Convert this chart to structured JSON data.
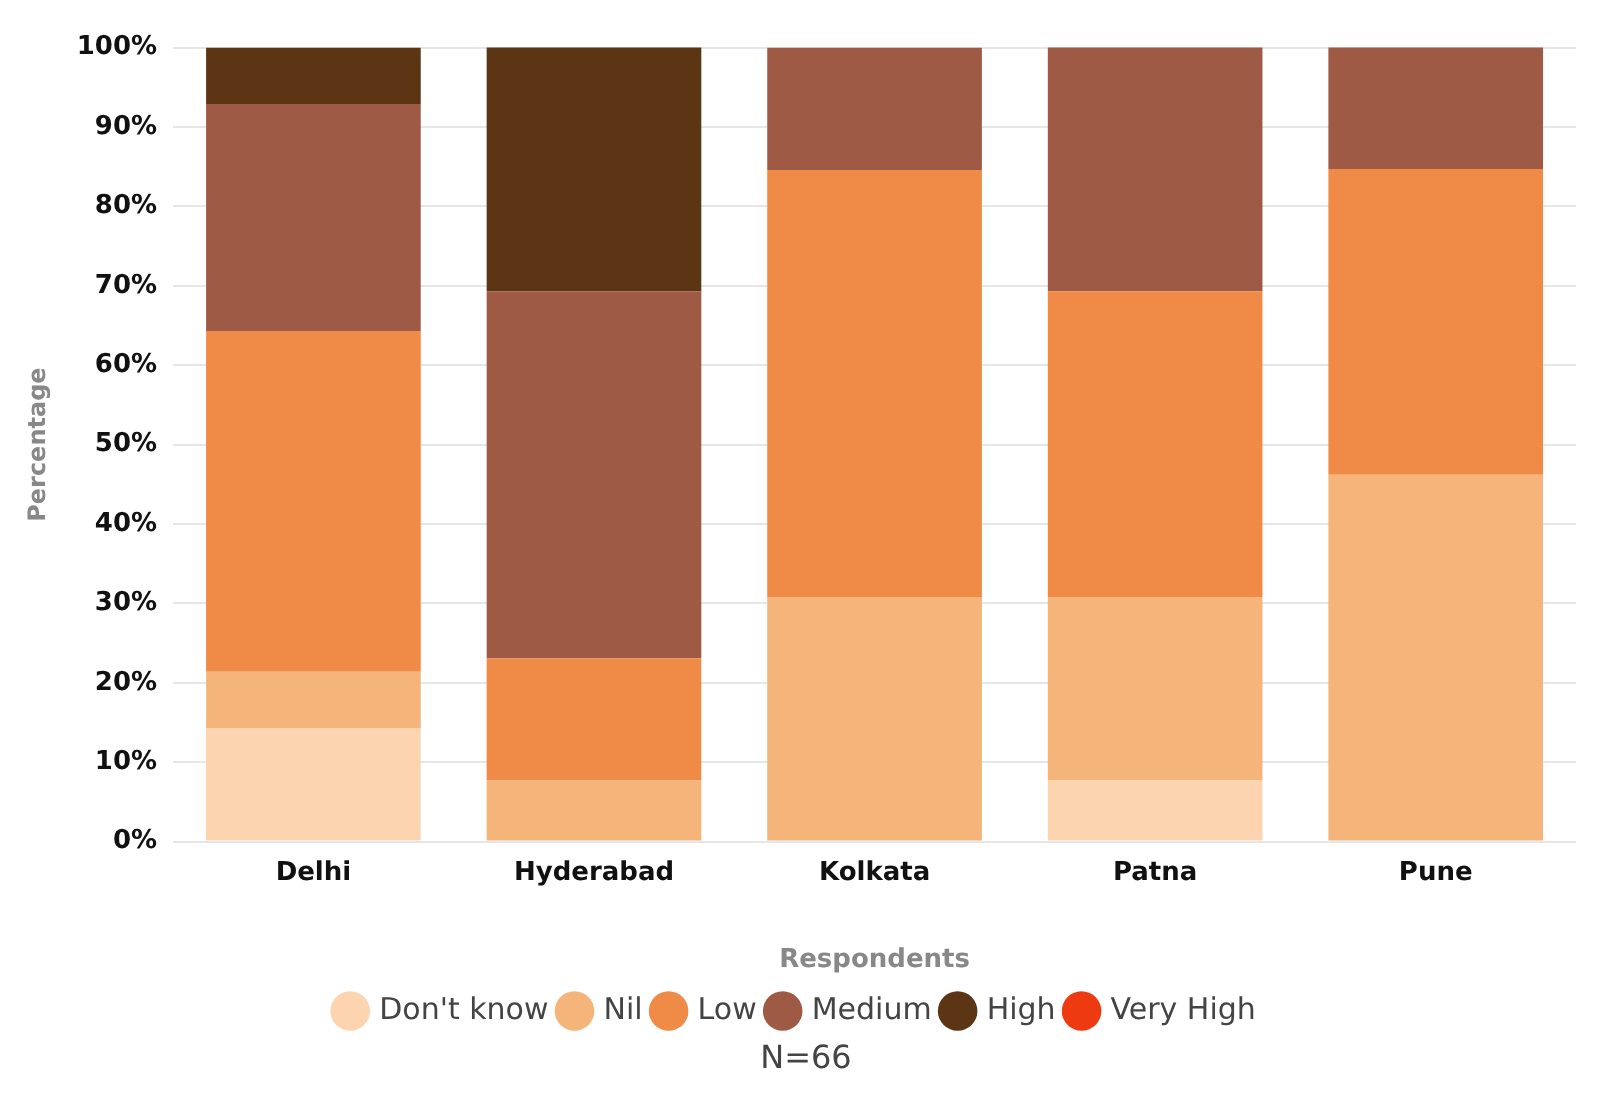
{
  "chart_data": {
    "type": "bar",
    "stacked": true,
    "xlabel": "Respondents",
    "ylabel": "Percentage",
    "categories": [
      "Delhi",
      "Hyderabad",
      "Kolkata",
      "Patna",
      "Pune"
    ],
    "series": [
      {
        "name": "Don't know",
        "color": "#fcd5b0",
        "values": [
          14.3,
          0,
          0,
          7.7,
          0
        ]
      },
      {
        "name": "Nil",
        "color": "#f4b47a",
        "values": [
          7.1,
          7.7,
          30.8,
          23.1,
          46.2
        ]
      },
      {
        "name": "Low",
        "color": "#ef8a47",
        "values": [
          42.9,
          15.4,
          53.8,
          38.5,
          38.5
        ]
      },
      {
        "name": "Medium",
        "color": "#9e5a44",
        "values": [
          28.6,
          46.2,
          15.4,
          30.8,
          15.4
        ]
      },
      {
        "name": "High",
        "color": "#5c3515",
        "values": [
          7.1,
          30.8,
          0,
          0,
          0
        ]
      },
      {
        "name": "Very High",
        "color": "#ee3a10",
        "values": [
          0,
          0,
          0,
          0,
          0
        ]
      }
    ],
    "ylim": [
      0,
      100
    ],
    "yticks": [
      {
        "value": 0,
        "label": "0%"
      },
      {
        "value": 10,
        "label": "10%"
      },
      {
        "value": 20,
        "label": "20%"
      },
      {
        "value": 30,
        "label": "30%"
      },
      {
        "value": 40,
        "label": "40%"
      },
      {
        "value": 50,
        "label": "50%"
      },
      {
        "value": 60,
        "label": "60%"
      },
      {
        "value": 70,
        "label": "70%"
      },
      {
        "value": 80,
        "label": "80%"
      },
      {
        "value": 90,
        "label": "90%"
      },
      {
        "value": 100,
        "label": "100%"
      }
    ],
    "grid": "y",
    "legend": "bottom",
    "marker": "circle",
    "annotations": [
      "N=66"
    ]
  }
}
